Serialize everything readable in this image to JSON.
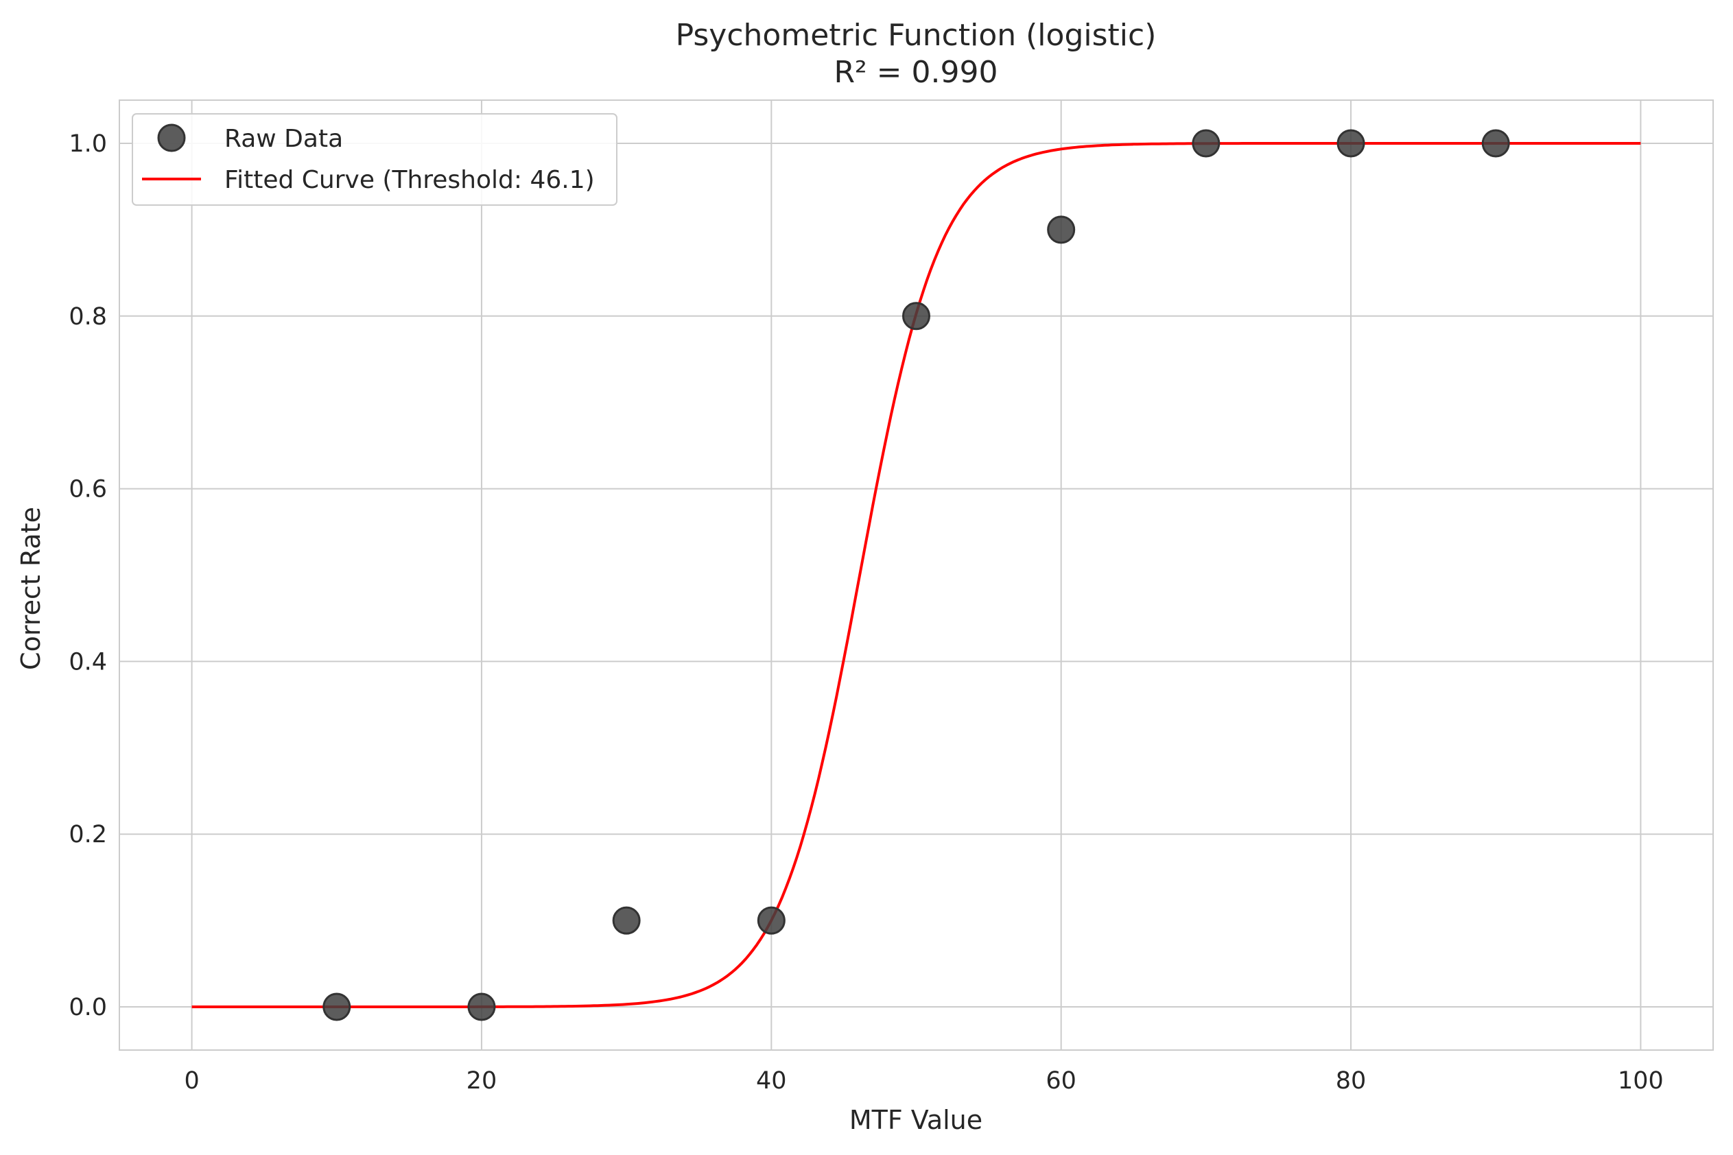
{
  "chart_data": {
    "type": "scatter",
    "title": "Psychometric Function (logistic)",
    "subtitle": "R² = 0.990",
    "xlabel": "MTF Value",
    "ylabel": "Correct Rate",
    "xlim": [
      -5,
      105
    ],
    "ylim": [
      -0.05,
      1.05
    ],
    "xticks": [
      0,
      20,
      40,
      60,
      80,
      100
    ],
    "xtick_labels": [
      "0",
      "20",
      "40",
      "60",
      "80",
      "100"
    ],
    "yticks": [
      0.0,
      0.2,
      0.4,
      0.6,
      0.8,
      1.0
    ],
    "ytick_labels": [
      "0.0",
      "0.2",
      "0.4",
      "0.6",
      "0.8",
      "1.0"
    ],
    "grid": true,
    "legend_position": "top-left",
    "series": [
      {
        "name": "Raw Data",
        "kind": "scatter",
        "color": "#404040",
        "x": [
          10,
          20,
          30,
          40,
          50,
          60,
          70,
          80,
          90
        ],
        "y": [
          0.0,
          0.0,
          0.1,
          0.1,
          0.8,
          0.9,
          1.0,
          1.0,
          1.0
        ]
      },
      {
        "name": "Fitted Curve (Threshold: 46.1)",
        "kind": "line",
        "color": "#ff0000",
        "model": "logistic",
        "threshold": 46.1,
        "slope": 0.36,
        "x_range": [
          0,
          100
        ]
      }
    ]
  }
}
